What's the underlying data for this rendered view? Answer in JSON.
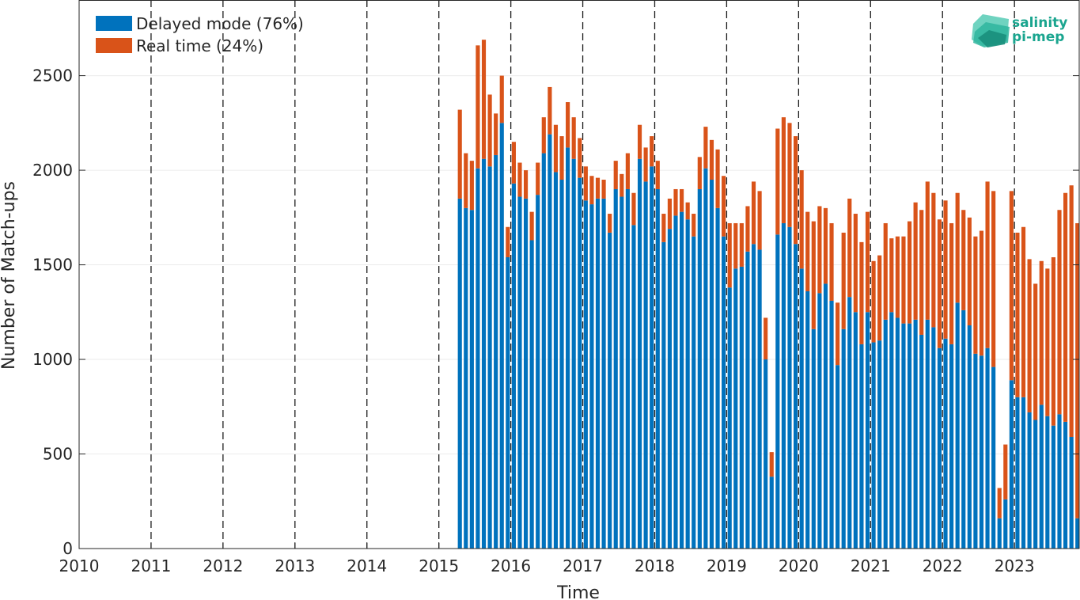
{
  "colors": {
    "delayed": "#0072BD",
    "realtime": "#D95319",
    "grid": "#ebebeb",
    "axis": "#262626",
    "logo": "#1aa58f"
  },
  "logo": {
    "line1": "salinity",
    "line2": "pi-mep",
    "icon": "wave-logo-icon"
  },
  "chart_data": {
    "type": "bar",
    "stacked": true,
    "xlabel": "Time",
    "ylabel": "Number of Match-ups",
    "xlim": [
      2010,
      2023.9
    ],
    "ylim": [
      0,
      2900
    ],
    "xticks": [
      "2010",
      "2011",
      "2012",
      "2013",
      "2014",
      "2015",
      "2016",
      "2017",
      "2018",
      "2019",
      "2020",
      "2021",
      "2022",
      "2023"
    ],
    "yticks": [
      "0",
      "500",
      "1000",
      "1500",
      "2000",
      "2500"
    ],
    "grid": "horizontal",
    "year_dividers": "dashed vertical lines at each year",
    "legend_position": "top-left",
    "start": "2015-04",
    "interval": "monthly",
    "series": [
      {
        "name": "Delayed mode (76%)",
        "values": [
          1850,
          1800,
          1790,
          2010,
          2060,
          2020,
          2080,
          2250,
          1540,
          1930,
          1860,
          1850,
          1630,
          1870,
          2090,
          2190,
          1990,
          1950,
          2120,
          2060,
          1960,
          1840,
          1820,
          1850,
          1850,
          1670,
          1900,
          1860,
          1900,
          1710,
          2060,
          1940,
          2020,
          1900,
          1620,
          1690,
          1760,
          1780,
          1740,
          1650,
          1900,
          2010,
          1950,
          1800,
          1650,
          1380,
          1480,
          1490,
          1570,
          1610,
          1580,
          1000,
          380,
          1660,
          1720,
          1700,
          1610,
          1480,
          1360,
          1160,
          1350,
          1400,
          1310,
          970,
          1160,
          1330,
          1250,
          1080,
          1250,
          1090,
          1100,
          1210,
          1250,
          1220,
          1190,
          1190,
          1210,
          1130,
          1210,
          1170,
          1060,
          1110,
          1080,
          1300,
          1260,
          1180,
          1030,
          1020,
          1060,
          960,
          160,
          260,
          890,
          800,
          800,
          720,
          680,
          760,
          700,
          650,
          710,
          670,
          590,
          160,
          30
        ],
        "note": "monthly match-up counts"
      },
      {
        "name": "Real time (24%)",
        "values": [
          470,
          290,
          260,
          650,
          630,
          380,
          220,
          250,
          160,
          220,
          180,
          150,
          150,
          170,
          190,
          250,
          250,
          230,
          240,
          220,
          210,
          180,
          150,
          110,
          100,
          100,
          150,
          120,
          190,
          170,
          180,
          180,
          160,
          150,
          150,
          160,
          140,
          120,
          90,
          120,
          170,
          220,
          210,
          310,
          320,
          340,
          240,
          230,
          240,
          330,
          310,
          220,
          130,
          560,
          560,
          550,
          570,
          520,
          420,
          570,
          460,
          400,
          410,
          330,
          510,
          520,
          520,
          540,
          530,
          430,
          450,
          510,
          390,
          430,
          460,
          540,
          620,
          660,
          730,
          710,
          680,
          730,
          640,
          580,
          530,
          570,
          620,
          660,
          880,
          930,
          160,
          290,
          1000,
          870,
          900,
          810,
          720,
          760,
          780,
          890,
          1080,
          1210,
          1330,
          1560,
          1690
        ],
        "note": "stacked on top of delayed mode"
      }
    ]
  }
}
